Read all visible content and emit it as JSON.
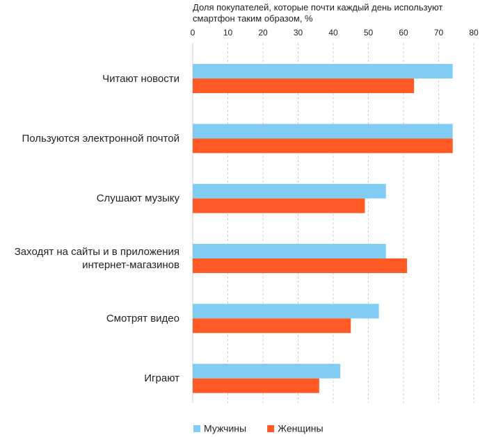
{
  "chart_data": {
    "type": "hbar",
    "title": "Доля покупателей, которые почти каждый день используют смартфон таким образом, %",
    "categories": [
      "Читают новости",
      "Пользуются электронной почтой",
      "Слушают музыку",
      "Заходят на сайты и в приложения\nинтернет-магазинов",
      "Смотрят видео",
      "Играют"
    ],
    "series": [
      {
        "name": "Мужчины",
        "color": "#80ccf2",
        "values": [
          74,
          74,
          55,
          55,
          53,
          42
        ]
      },
      {
        "name": "Женщины",
        "color": "#ff5a26",
        "values": [
          63,
          74,
          49,
          61,
          45,
          36
        ]
      }
    ],
    "xlim": [
      0,
      80
    ],
    "xticks": [
      0,
      10,
      20,
      30,
      40,
      50,
      60,
      70,
      80
    ],
    "grid": true,
    "legend": "bottom"
  }
}
